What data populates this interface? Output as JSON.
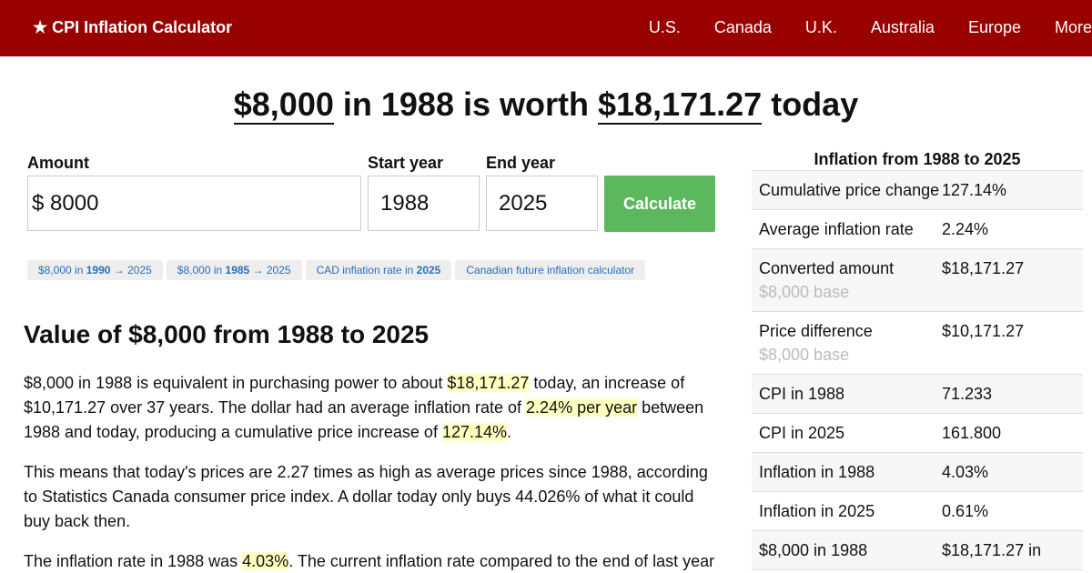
{
  "nav": {
    "brand": "★ CPI Inflation Calculator",
    "links": [
      "U.S.",
      "Canada",
      "U.K.",
      "Australia",
      "Europe",
      "More"
    ]
  },
  "headline": {
    "amount": "$8,000",
    "middle": "in 1988 is worth",
    "result": "$18,171.27",
    "end": "today"
  },
  "form": {
    "amount_label": "Amount",
    "currency": "$",
    "amount_value": "8000",
    "start_label": "Start year",
    "start_value": "1988",
    "end_label": "End year",
    "end_value": "2025",
    "button": "Calculate"
  },
  "chips": [
    [
      "$8,000 in ",
      "1990",
      " → 2025"
    ],
    [
      "$8,000 in ",
      "1985",
      " → 2025"
    ],
    [
      "CAD inflation rate in ",
      "2025"
    ],
    [
      "Canadian future inflation calculator"
    ]
  ],
  "section": {
    "heading": "Value of $8,000 from 1988 to 2025",
    "paragraphs": [
      [
        "$8,000 in 1988 is equivalent in purchasing power to about ",
        "$18,171.27",
        " today, an increase of $10,171.27 over 37 years. The dollar had an average inflation rate of ",
        "2.24% per year",
        " between 1988 and today, producing a cumulative price increase of ",
        "127.14%",
        "."
      ],
      [
        "This means that today's prices are 2.27 times as high as average prices since 1988, according to Statistics Canada consumer price index. A dollar today only buys 44.026% of what it could buy back then."
      ],
      [
        "The inflation rate in 1988 was ",
        "4.03%",
        ". The current inflation rate compared to the end of last year"
      ]
    ]
  },
  "sidebar": {
    "title": "Inflation from 1988 to 2025",
    "rows": [
      {
        "label": "Cumulative price change",
        "value": "127.14%"
      },
      {
        "label": "Average inflation rate",
        "value": "2.24%"
      },
      {
        "label": "Converted amount",
        "note": "$8,000 base",
        "value": "$18,171.27"
      },
      {
        "label": "Price difference",
        "note": "$8,000 base",
        "value": "$10,171.27"
      },
      {
        "label": "CPI in 1988",
        "value": "71.233"
      },
      {
        "label": "CPI in 2025",
        "value": "161.800"
      },
      {
        "label": "Inflation in 1988",
        "value": "4.03%"
      },
      {
        "label": "Inflation in 2025",
        "value": "0.61%"
      },
      {
        "label": "$8,000 in 1988",
        "value": "$18,171.27 in"
      }
    ]
  }
}
